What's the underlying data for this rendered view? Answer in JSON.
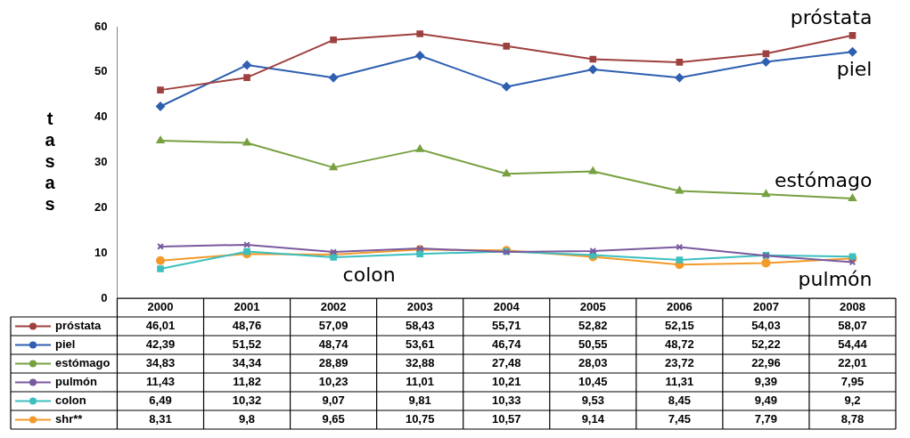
{
  "chart_data": {
    "type": "line",
    "ylabel": "tasas",
    "categories": [
      "2000",
      "2001",
      "2002",
      "2003",
      "2004",
      "2005",
      "2006",
      "2007",
      "2008"
    ],
    "ylim": [
      0,
      60
    ],
    "yticks": [
      0,
      10,
      20,
      30,
      40,
      50,
      60
    ],
    "grid": false,
    "legend": "bottom",
    "series": [
      {
        "name": "próstata",
        "color": "#9e413e",
        "marker": "square",
        "values": [
          46.01,
          48.76,
          57.09,
          58.43,
          55.71,
          52.82,
          52.15,
          54.03,
          58.07
        ],
        "value_labels": [
          "46,01",
          "48,76",
          "57,09",
          "58,43",
          "55,71",
          "52,82",
          "52,15",
          "54,03",
          "58,07"
        ]
      },
      {
        "name": "piel",
        "color": "#2f5fb0",
        "marker": "diamond",
        "values": [
          42.39,
          51.52,
          48.74,
          53.61,
          46.74,
          50.55,
          48.72,
          52.22,
          54.44
        ],
        "value_labels": [
          "42,39",
          "51,52",
          "48,74",
          "53,61",
          "46,74",
          "50,55",
          "48,72",
          "52,22",
          "54,44"
        ]
      },
      {
        "name": "estómago",
        "color": "#77a040",
        "marker": "triangle",
        "values": [
          34.83,
          34.34,
          28.89,
          32.88,
          27.48,
          28.03,
          23.72,
          22.96,
          22.01
        ],
        "value_labels": [
          "34,83",
          "34,34",
          "28,89",
          "32,88",
          "27,48",
          "28,03",
          "23,72",
          "22,96",
          "22,01"
        ]
      },
      {
        "name": "pulmón",
        "color": "#7a5a9e",
        "marker": "cross",
        "values": [
          11.43,
          11.82,
          10.23,
          11.01,
          10.21,
          10.45,
          11.31,
          9.39,
          7.95
        ],
        "value_labels": [
          "11,43",
          "11,82",
          "10,23",
          "11,01",
          "10,21",
          "10,45",
          "11,31",
          "9,39",
          "7,95"
        ]
      },
      {
        "name": "colon",
        "color": "#3cbfbf",
        "marker": "square",
        "values": [
          6.49,
          10.32,
          9.07,
          9.81,
          10.33,
          9.53,
          8.45,
          9.49,
          9.2
        ],
        "value_labels": [
          "6,49",
          "10,32",
          "9,07",
          "9,81",
          "10,33",
          "9,53",
          "8,45",
          "9,49",
          "9,2"
        ]
      },
      {
        "name": "shr**",
        "color": "#f39a2a",
        "marker": "circle",
        "values": [
          8.31,
          9.8,
          9.65,
          10.75,
          10.57,
          9.14,
          7.45,
          7.79,
          8.78
        ],
        "value_labels": [
          "8,31",
          "9,8",
          "9,65",
          "10,75",
          "10,57",
          "9,14",
          "7,45",
          "7,79",
          "8,78"
        ]
      }
    ],
    "annotations": [
      {
        "text": "próstata",
        "x": "2008",
        "y": 58.07
      },
      {
        "text": "piel",
        "x": "2008",
        "y": 54.44
      },
      {
        "text": "estómago",
        "x": "2008",
        "y": 22.01
      },
      {
        "text": "pulmón",
        "x": "2008",
        "y": 7.95
      },
      {
        "text": "colon",
        "x": "2002",
        "y": 9.07
      }
    ]
  }
}
